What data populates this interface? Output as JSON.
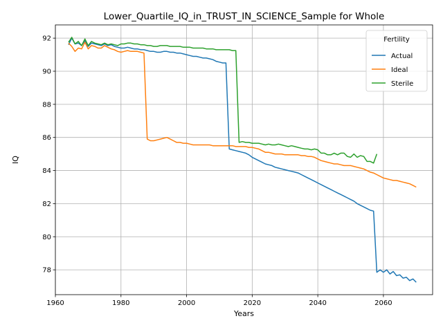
{
  "chart_data": {
    "type": "line",
    "title": "Lower_Quartile_IQ_in_TRUST_IN_SCIENCE_Sample for Whole",
    "xlabel": "Years",
    "ylabel": "IQ",
    "xlim": [
      1960,
      2075
    ],
    "ylim": [
      76.5,
      92.8
    ],
    "xticks": [
      1960,
      1980,
      2000,
      2020,
      2040,
      2060
    ],
    "yticks": [
      78,
      80,
      82,
      84,
      86,
      88,
      90,
      92
    ],
    "grid": true,
    "legend": {
      "title": "Fertility",
      "placement": "top-right"
    },
    "series": [
      {
        "name": "Actual",
        "color": "#1f77b4",
        "x": [
          1964,
          1965,
          1966,
          1967,
          1968,
          1969,
          1970,
          1971,
          1972,
          1973,
          1974,
          1975,
          1976,
          1977,
          1978,
          1979,
          1980,
          1981,
          1982,
          1983,
          1984,
          1985,
          1986,
          1987,
          1988,
          1989,
          1990,
          1991,
          1992,
          1993,
          1994,
          1995,
          1996,
          1997,
          1998,
          1999,
          2000,
          2001,
          2002,
          2003,
          2004,
          2005,
          2006,
          2007,
          2008,
          2009,
          2010,
          2011,
          2012,
          2013,
          2014,
          2015,
          2016,
          2017,
          2018,
          2019,
          2020,
          2021,
          2022,
          2023,
          2024,
          2025,
          2026,
          2027,
          2028,
          2029,
          2030,
          2031,
          2032,
          2033,
          2034,
          2035,
          2036,
          2037,
          2038,
          2039,
          2040,
          2041,
          2042,
          2043,
          2044,
          2045,
          2046,
          2047,
          2048,
          2049,
          2050,
          2051,
          2052,
          2053,
          2054,
          2055,
          2056,
          2057,
          2058,
          2059,
          2060,
          2061,
          2062,
          2063,
          2064,
          2065,
          2066,
          2067,
          2068,
          2069,
          2070
        ],
        "y": [
          91.6,
          92.0,
          91.65,
          91.7,
          91.55,
          91.85,
          91.5,
          91.7,
          91.65,
          91.6,
          91.55,
          91.65,
          91.55,
          91.6,
          91.5,
          91.45,
          91.4,
          91.4,
          91.45,
          91.4,
          91.35,
          91.35,
          91.3,
          91.3,
          91.25,
          91.2,
          91.2,
          91.15,
          91.15,
          91.2,
          91.2,
          91.15,
          91.15,
          91.1,
          91.1,
          91.05,
          91.0,
          90.95,
          90.9,
          90.9,
          90.85,
          90.8,
          90.8,
          90.75,
          90.7,
          90.6,
          90.55,
          90.5,
          90.5,
          85.3,
          85.25,
          85.2,
          85.15,
          85.1,
          85.05,
          84.95,
          84.8,
          84.7,
          84.6,
          84.5,
          84.4,
          84.35,
          84.3,
          84.2,
          84.15,
          84.1,
          84.05,
          84.0,
          83.95,
          83.9,
          83.85,
          83.75,
          83.65,
          83.55,
          83.45,
          83.35,
          83.25,
          83.15,
          83.05,
          82.95,
          82.85,
          82.75,
          82.65,
          82.55,
          82.45,
          82.35,
          82.25,
          82.15,
          82.0,
          81.9,
          81.8,
          81.7,
          81.6,
          81.55,
          77.85,
          78.0,
          77.85,
          78.0,
          77.75,
          77.9,
          77.65,
          77.7,
          77.5,
          77.55,
          77.35,
          77.45,
          77.25
        ]
      },
      {
        "name": "Ideal",
        "color": "#ff7f0e",
        "x": [
          1964,
          1965,
          1966,
          1967,
          1968,
          1969,
          1970,
          1971,
          1972,
          1973,
          1974,
          1975,
          1976,
          1977,
          1978,
          1979,
          1980,
          1981,
          1982,
          1983,
          1984,
          1985,
          1986,
          1987,
          1988,
          1989,
          1990,
          1991,
          1992,
          1993,
          1994,
          1995,
          1996,
          1997,
          1998,
          1999,
          2000,
          2001,
          2002,
          2003,
          2004,
          2005,
          2006,
          2007,
          2008,
          2009,
          2010,
          2011,
          2012,
          2013,
          2014,
          2015,
          2016,
          2017,
          2018,
          2019,
          2020,
          2021,
          2022,
          2023,
          2024,
          2025,
          2026,
          2027,
          2028,
          2029,
          2030,
          2031,
          2032,
          2033,
          2034,
          2035,
          2036,
          2037,
          2038,
          2039,
          2040,
          2041,
          2042,
          2043,
          2044,
          2045,
          2046,
          2047,
          2048,
          2049,
          2050,
          2051,
          2052,
          2053,
          2054,
          2055,
          2056,
          2057,
          2058,
          2059,
          2060,
          2061,
          2062,
          2063,
          2064,
          2065,
          2066,
          2067,
          2068,
          2069,
          2070
        ],
        "y": [
          91.7,
          91.5,
          91.2,
          91.4,
          91.35,
          91.75,
          91.35,
          91.55,
          91.5,
          91.4,
          91.4,
          91.55,
          91.45,
          91.35,
          91.3,
          91.2,
          91.15,
          91.2,
          91.25,
          91.2,
          91.2,
          91.2,
          91.15,
          91.1,
          85.9,
          85.8,
          85.8,
          85.85,
          85.9,
          85.95,
          86.0,
          85.9,
          85.8,
          85.7,
          85.7,
          85.65,
          85.65,
          85.6,
          85.55,
          85.55,
          85.55,
          85.55,
          85.55,
          85.55,
          85.5,
          85.5,
          85.5,
          85.5,
          85.5,
          85.5,
          85.5,
          85.45,
          85.45,
          85.45,
          85.45,
          85.4,
          85.4,
          85.35,
          85.3,
          85.2,
          85.1,
          85.1,
          85.05,
          85.0,
          85.0,
          85.0,
          84.95,
          84.95,
          84.95,
          84.95,
          84.95,
          84.9,
          84.9,
          84.85,
          84.85,
          84.8,
          84.7,
          84.6,
          84.55,
          84.5,
          84.45,
          84.4,
          84.4,
          84.35,
          84.3,
          84.3,
          84.3,
          84.25,
          84.2,
          84.15,
          84.1,
          84.0,
          83.9,
          83.85,
          83.75,
          83.65,
          83.55,
          83.5,
          83.45,
          83.4,
          83.4,
          83.35,
          83.3,
          83.25,
          83.2,
          83.1,
          83.0
        ]
      },
      {
        "name": "Sterile",
        "color": "#2ca02c",
        "x": [
          1964,
          1965,
          1966,
          1967,
          1968,
          1969,
          1970,
          1971,
          1972,
          1973,
          1974,
          1975,
          1976,
          1977,
          1978,
          1979,
          1980,
          1981,
          1982,
          1983,
          1984,
          1985,
          1986,
          1987,
          1988,
          1989,
          1990,
          1991,
          1992,
          1993,
          1994,
          1995,
          1996,
          1997,
          1998,
          1999,
          2000,
          2001,
          2002,
          2003,
          2004,
          2005,
          2006,
          2007,
          2008,
          2009,
          2010,
          2011,
          2012,
          2013,
          2014,
          2015,
          2016,
          2017,
          2018,
          2019,
          2020,
          2021,
          2022,
          2023,
          2024,
          2025,
          2026,
          2027,
          2028,
          2029,
          2030,
          2031,
          2032,
          2033,
          2034,
          2035,
          2036,
          2037,
          2038,
          2039,
          2040,
          2041,
          2042,
          2043,
          2044,
          2045,
          2046,
          2047,
          2048,
          2049,
          2050,
          2051,
          2052,
          2053,
          2054,
          2055,
          2056,
          2057,
          2058
        ],
        "y": [
          91.75,
          92.05,
          91.65,
          91.8,
          91.55,
          91.95,
          91.55,
          91.8,
          91.7,
          91.65,
          91.6,
          91.7,
          91.6,
          91.65,
          91.6,
          91.55,
          91.65,
          91.65,
          91.7,
          91.7,
          91.65,
          91.65,
          91.6,
          91.6,
          91.55,
          91.55,
          91.5,
          91.5,
          91.55,
          91.55,
          91.55,
          91.5,
          91.5,
          91.5,
          91.5,
          91.45,
          91.45,
          91.45,
          91.4,
          91.4,
          91.4,
          91.4,
          91.35,
          91.35,
          91.35,
          91.3,
          91.3,
          91.3,
          91.3,
          91.3,
          91.25,
          91.25,
          85.7,
          85.75,
          85.7,
          85.7,
          85.65,
          85.65,
          85.65,
          85.6,
          85.55,
          85.6,
          85.55,
          85.55,
          85.6,
          85.55,
          85.5,
          85.45,
          85.5,
          85.45,
          85.4,
          85.35,
          85.3,
          85.3,
          85.25,
          85.3,
          85.25,
          85.05,
          85.05,
          84.95,
          84.95,
          85.05,
          84.95,
          85.05,
          85.05,
          84.85,
          84.8,
          85.0,
          84.8,
          84.9,
          84.85,
          84.55,
          84.55,
          84.45,
          85.0
        ]
      }
    ]
  }
}
